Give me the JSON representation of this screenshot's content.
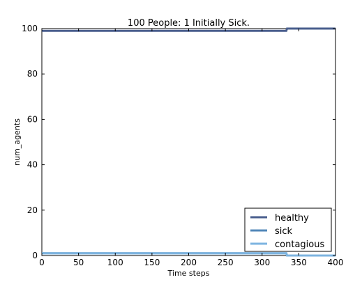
{
  "chart_data": {
    "type": "line",
    "title": "100 People: 1 Initially Sick.",
    "xlabel": "Time steps",
    "ylabel": "num_agents",
    "xlim": [
      0,
      400
    ],
    "ylim": [
      0,
      100
    ],
    "xticks": [
      0,
      50,
      100,
      150,
      200,
      250,
      300,
      350,
      400
    ],
    "yticks": [
      0,
      20,
      40,
      60,
      80,
      100
    ],
    "grid": false,
    "legend_position": "lower-right",
    "series": [
      {
        "name": "healthy",
        "color": "#4a5f8e",
        "x": [
          0,
          333,
          334,
          400
        ],
        "y": [
          99,
          99,
          100,
          100
        ]
      },
      {
        "name": "sick",
        "color": "#5287b8",
        "x": [
          0,
          333,
          334,
          400
        ],
        "y": [
          1,
          1,
          0,
          0
        ]
      },
      {
        "name": "contagious",
        "color": "#7db4e0",
        "x": [
          0,
          333,
          334,
          400
        ],
        "y": [
          1,
          1,
          0,
          0
        ]
      }
    ]
  }
}
